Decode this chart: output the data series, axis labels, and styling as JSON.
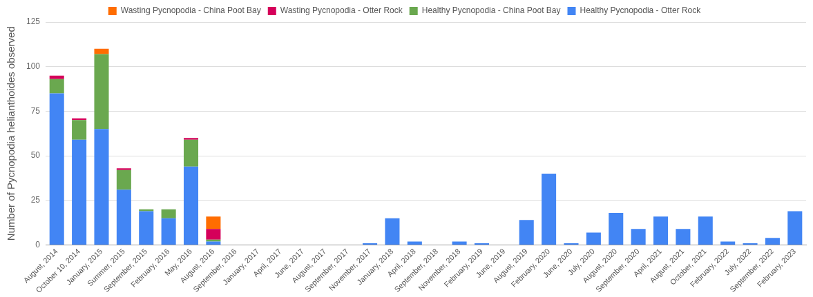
{
  "chart_data": {
    "type": "bar",
    "stacked": true,
    "ylabel": "Number of Pycnopodia helianthoides observed",
    "categories": [
      "August, 2014",
      "October 10, 2014",
      "January, 2015",
      "Summer, 2015",
      "September, 2015",
      "February, 2016",
      "May, 2016",
      "August, 2016",
      "September, 2016",
      "January, 2017",
      "April, 2017",
      "June, 2017",
      "August, 2017",
      "September, 2017",
      "November, 2017",
      "January, 2018",
      "April, 2018",
      "September, 2018",
      "November, 2018",
      "February, 2019",
      "June, 2019",
      "August, 2019",
      "February, 2020",
      "June, 2020",
      "July, 2020",
      "August, 2020",
      "September, 2020",
      "April, 2021",
      "August, 2021",
      "October, 2021",
      "February, 2022",
      "July, 2022",
      "September, 2022",
      "February, 2023"
    ],
    "series": [
      {
        "name": "Healthy Pycnopodia - Otter Rock",
        "color": "#4285f4",
        "values": [
          85,
          59,
          65,
          31,
          19,
          15,
          44,
          2,
          0,
          0,
          0,
          0,
          0,
          0,
          1,
          15,
          2,
          0,
          2,
          1,
          0,
          14,
          40,
          1,
          7,
          18,
          9,
          16,
          9,
          16,
          2,
          1,
          4,
          19
        ]
      },
      {
        "name": "Healthy Pycnopodia - China Poot Bay",
        "color": "#6aa84f",
        "values": [
          8,
          11,
          42,
          11,
          1,
          5,
          15,
          1,
          0,
          0,
          0,
          0,
          0,
          0,
          0,
          0,
          0,
          0,
          0,
          0,
          0,
          0,
          0,
          0,
          0,
          0,
          0,
          0,
          0,
          0,
          0,
          0,
          0,
          0
        ]
      },
      {
        "name": "Wasting Pycnopodia - Otter Rock",
        "color": "#d5005a",
        "values": [
          2,
          1,
          0,
          1,
          0,
          0,
          1,
          6,
          0,
          0,
          0,
          0,
          0,
          0,
          0,
          0,
          0,
          0,
          0,
          0,
          0,
          0,
          0,
          0,
          0,
          0,
          0,
          0,
          0,
          0,
          0,
          0,
          0,
          0
        ]
      },
      {
        "name": "Wasting Pycnopodia - China Poot Bay",
        "color": "#ff6d01",
        "values": [
          0,
          0,
          3,
          0,
          0,
          0,
          0,
          7,
          0,
          0,
          0,
          0,
          0,
          0,
          0,
          0,
          0,
          0,
          0,
          0,
          0,
          0,
          0,
          0,
          0,
          0,
          0,
          0,
          0,
          0,
          0,
          0,
          0,
          0
        ]
      }
    ],
    "ylim": [
      0,
      125
    ],
    "yticks": [
      0,
      25,
      50,
      75,
      100,
      125
    ],
    "grid": "y",
    "legend": "top"
  }
}
